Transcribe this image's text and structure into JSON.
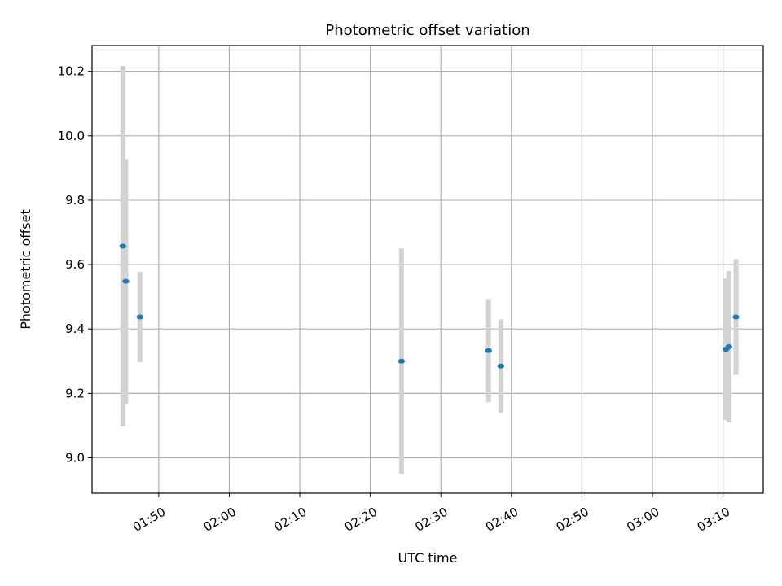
{
  "chart_data": {
    "type": "scatter",
    "title": "Photometric offset variation",
    "xlabel": "UTC time",
    "ylabel": "Photometric offset",
    "grid": true,
    "xlim": [
      "01:40:33",
      "03:15:42"
    ],
    "ylim": [
      8.89,
      10.28
    ],
    "xticks": [
      "01:50",
      "02:00",
      "02:10",
      "02:20",
      "02:30",
      "02:40",
      "02:50",
      "03:00",
      "03:10"
    ],
    "yticks": [
      "9.0",
      "9.2",
      "9.4",
      "9.6",
      "9.8",
      "10.0",
      "10.2"
    ],
    "colors": {
      "point": "#1f77b4",
      "errorbar": "#d3d3d3",
      "grid": "#b0b0b0"
    },
    "points": [
      {
        "x": "01:44:55",
        "y": 9.657,
        "yerr": 0.56
      },
      {
        "x": "01:45:20",
        "y": 9.548,
        "yerr": 0.38
      },
      {
        "x": "01:47:20",
        "y": 9.437,
        "yerr": 0.14
      },
      {
        "x": "02:24:25",
        "y": 9.3,
        "yerr": 0.35
      },
      {
        "x": "02:36:45",
        "y": 9.333,
        "yerr": 0.16
      },
      {
        "x": "02:38:30",
        "y": 9.285,
        "yerr": 0.145
      },
      {
        "x": "03:10:25",
        "y": 9.337,
        "yerr": 0.22
      },
      {
        "x": "03:10:50",
        "y": 9.345,
        "yerr": 0.235
      },
      {
        "x": "03:11:50",
        "y": 9.437,
        "yerr": 0.18
      }
    ]
  }
}
